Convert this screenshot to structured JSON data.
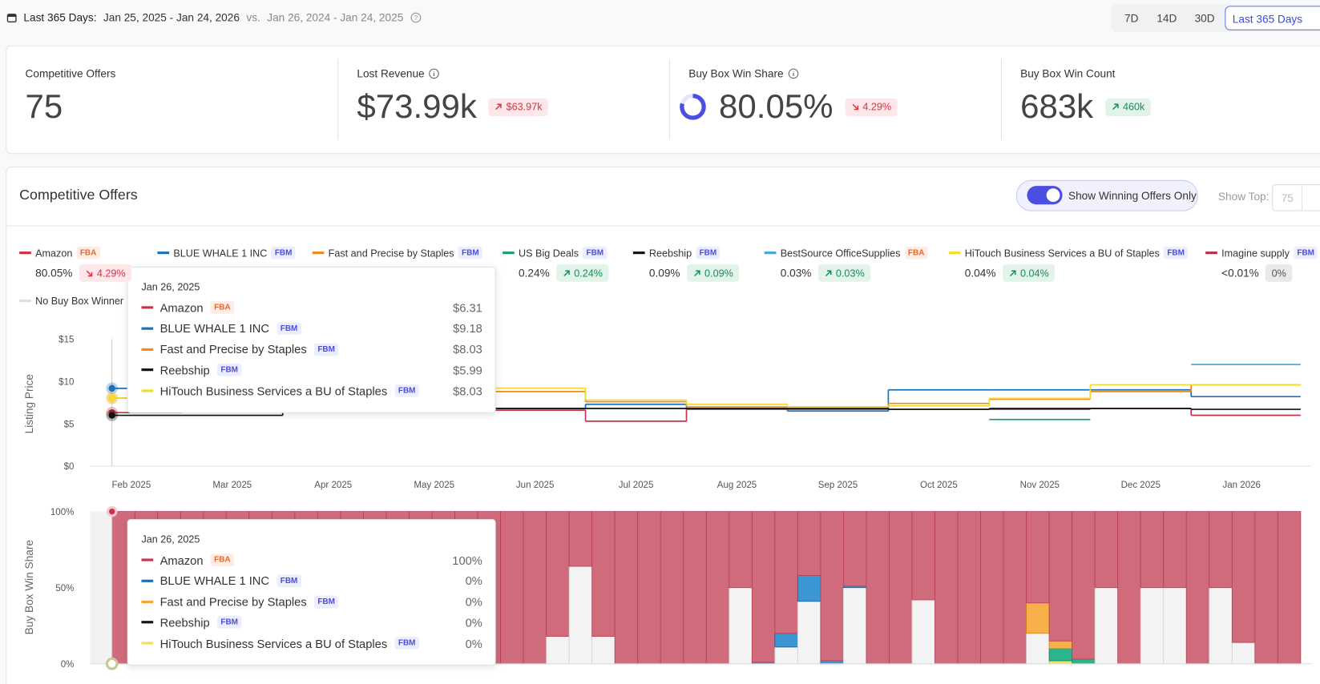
{
  "header": {
    "period_label": "Last 365 Days:",
    "range": "Jan 25, 2025 - Jan 24, 2026",
    "vs": "vs.",
    "compare_range": "Jan 26, 2024 - Jan 24, 2025"
  },
  "range_buttons": {
    "options": [
      "7D",
      "14D",
      "30D",
      "Last 365 Days"
    ],
    "selected": 3
  },
  "kpis": [
    {
      "title": "Competitive Offers",
      "value": 75
    },
    {
      "title": "Lost Revenue",
      "value": "$73.99k",
      "change": "$63.97k",
      "trend": "up",
      "tone": "bad",
      "info": true
    },
    {
      "title": "Buy Box Win Share",
      "value": "80.05%",
      "change": "4.29%",
      "trend": "down",
      "tone": "bad",
      "info": true,
      "ring": true
    },
    {
      "title": "Buy Box Win Count",
      "value": "683k",
      "change": "460k",
      "trend": "up",
      "tone": "good"
    }
  ],
  "panel": {
    "title": "Competitive Offers",
    "toggle_label": "Show Winning Offers Only",
    "toggle_on": true,
    "show_top_label": "Show Top:",
    "show_top_value": 75
  },
  "badge_styles": {
    "FBA": {
      "color": "#e4682f",
      "bg": "#fdede4"
    },
    "FBM": {
      "color": "#4a4ed8",
      "bg": "#eceefd"
    }
  },
  "legend": [
    {
      "name": "Amazon",
      "badge": "FBA",
      "color": "#c8334b",
      "share": "80.05%",
      "change": "4.29%",
      "trend": "down"
    },
    {
      "name": "BLUE WHALE 1 INC",
      "badge": "FBM",
      "color": "#1f6fb5"
    },
    {
      "name": "Fast and Precise by Staples",
      "badge": "FBM",
      "color": "#ef8a1f"
    },
    {
      "name": "US Big Deals",
      "badge": "FBM",
      "color": "#1a9e77",
      "share": "0.24%",
      "change": "0.24%",
      "trend": "up"
    },
    {
      "name": "Reebship",
      "badge": "FBM",
      "color": "#111111",
      "share": "0.09%",
      "change": "0.09%",
      "trend": "up"
    },
    {
      "name": "BestSource OfficeSupplies",
      "badge": "FBA",
      "color": "#42a5e0",
      "share": "0.03%",
      "change": "0.03%",
      "trend": "up"
    },
    {
      "name": "HiTouch Business Services a BU of Staples",
      "badge": "FBM",
      "color": "#f2db2e",
      "share": "0.04%",
      "change": "0.04%",
      "trend": "up"
    },
    {
      "name": "Imagine supply",
      "badge": "FBM",
      "color": "#b5304a",
      "share": "<0.01%",
      "change": "0%",
      "trend": "flat"
    },
    {
      "name": "No Buy Box Winner",
      "color": "#dddddd"
    }
  ],
  "chart_data": [
    {
      "type": "line",
      "y_label": "Listing Price",
      "categories": [
        "Feb 2025",
        "Mar 2025",
        "Apr 2025",
        "May 2025",
        "Jun 2025",
        "Jul 2025",
        "Aug 2025",
        "Sep 2025",
        "Oct 2025",
        "Nov 2025",
        "Dec 2025",
        "Jan 2026"
      ],
      "ylim": [
        0,
        15
      ],
      "yticks": [
        {
          "value": 0,
          "label": "$0"
        },
        {
          "value": 5,
          "label": "$5"
        },
        {
          "value": 10,
          "label": "$10"
        },
        {
          "value": 15,
          "label": "$15"
        }
      ],
      "series": [
        {
          "color": "#c8334b",
          "values": [
            6.31,
            6.7,
            6.7,
            6.7,
            6.6,
            5.3,
            6.7,
            6.7,
            6.7,
            6.7,
            6.8,
            6.0
          ]
        },
        {
          "color": "#1f6fb5",
          "values": [
            9.18,
            9.0,
            8.9,
            7.0,
            6.8,
            7.3,
            6.8,
            6.5,
            9.0,
            9.0,
            9.0,
            8.2
          ]
        },
        {
          "color": "#ef8a1f",
          "values": [
            8.03,
            8.0,
            8.3,
            8.7,
            8.8,
            7.6,
            7.0,
            7.0,
            7.4,
            7.9,
            8.8,
            9.6
          ]
        },
        {
          "color": "#1a9e77",
          "values": [
            null,
            null,
            null,
            null,
            null,
            null,
            null,
            null,
            null,
            5.5,
            null,
            null
          ]
        },
        {
          "color": "#111111",
          "values": [
            5.99,
            5.99,
            6.8,
            6.8,
            6.8,
            6.8,
            6.8,
            6.8,
            6.7,
            6.8,
            6.8,
            6.7
          ]
        },
        {
          "color": "#42a5e0",
          "values": [
            null,
            null,
            null,
            null,
            null,
            null,
            null,
            null,
            null,
            null,
            null,
            12.0
          ]
        },
        {
          "color": "#f2db2e",
          "values": [
            8.03,
            8.3,
            8.6,
            8.9,
            9.2,
            7.8,
            7.3,
            7.0,
            7.1,
            8.0,
            9.6,
            9.6
          ]
        }
      ]
    },
    {
      "type": "bar",
      "stacked": true,
      "y_label": "Buy Box Win Share",
      "categories": [
        null,
        null,
        null,
        null,
        null,
        null,
        null,
        null,
        null,
        null,
        null,
        null,
        null,
        null,
        null,
        null,
        null,
        null,
        null,
        null,
        null,
        null,
        null,
        null,
        null,
        null,
        null,
        null,
        null,
        null,
        null,
        null,
        null,
        null,
        null,
        null,
        null,
        null,
        null,
        null,
        null,
        null,
        null,
        null,
        null,
        null,
        null,
        null,
        null,
        null,
        null,
        null
      ],
      "ylim": [
        0,
        100
      ],
      "yticks": [
        {
          "value": 0,
          "label": "0%"
        },
        {
          "value": 50,
          "label": "50%"
        },
        {
          "value": 100,
          "label": "100%"
        }
      ],
      "series": [
        {
          "color": "#f3f3f3",
          "edge_color": "#d4d4d4",
          "values": [
            0,
            0,
            0,
            0,
            0,
            0,
            0,
            0,
            0,
            0,
            0,
            0,
            0,
            0,
            0,
            0,
            0,
            0,
            0,
            18,
            64,
            18,
            0,
            0,
            0,
            0,
            0,
            50,
            0,
            11,
            41,
            0,
            50,
            0,
            0,
            42,
            0,
            0,
            0,
            0,
            20,
            0,
            0,
            50,
            0,
            50,
            50,
            0,
            50,
            14,
            0,
            0
          ]
        },
        {
          "color": "#f0e35a",
          "edge_color": "#c9b82a",
          "values": [
            0,
            0,
            0,
            0,
            0,
            0,
            0,
            0,
            0,
            0,
            0,
            0,
            0,
            0,
            0,
            0,
            0,
            0,
            0,
            0,
            0,
            0,
            0,
            0,
            0,
            0,
            0,
            0,
            0,
            0,
            0,
            0,
            0,
            0,
            0,
            0,
            0,
            0,
            0,
            0,
            0,
            2,
            0,
            0,
            0,
            0,
            0,
            0,
            0,
            0,
            0,
            0
          ]
        },
        {
          "color": "#2bb58c",
          "edge_color": "#16845f",
          "values": [
            0,
            0,
            0,
            0,
            0,
            0,
            0,
            0,
            0,
            0,
            0,
            0,
            0,
            0,
            0,
            0,
            0,
            0,
            0,
            0,
            0,
            0,
            0,
            0,
            0,
            0,
            0,
            0,
            0,
            0,
            0,
            0,
            0,
            0,
            0,
            0,
            0,
            0,
            0,
            0,
            0,
            8,
            3,
            0,
            0,
            0,
            0,
            0,
            0,
            0,
            0,
            0
          ]
        },
        {
          "color": "#f7b04a",
          "edge_color": "#d88a1c",
          "values": [
            0,
            0,
            0,
            0,
            0,
            0,
            0,
            0,
            0,
            0,
            0,
            0,
            0,
            0,
            0,
            0,
            0,
            0,
            0,
            0,
            0,
            0,
            0,
            0,
            0,
            0,
            0,
            0,
            0,
            0,
            0,
            0,
            0,
            0,
            0,
            0,
            0,
            0,
            0,
            0,
            20,
            5,
            0,
            0,
            0,
            0,
            0,
            0,
            0,
            0,
            0,
            0
          ]
        },
        {
          "color": "#3d96d4",
          "edge_color": "#1f5f9a",
          "values": [
            0,
            0,
            0,
            0,
            0,
            0,
            0,
            0,
            0,
            0,
            0,
            0,
            0,
            0,
            0,
            0,
            0,
            0,
            0,
            0,
            0,
            0,
            0,
            0,
            0,
            0,
            0,
            0,
            1,
            9,
            17,
            2,
            1,
            0,
            0,
            0,
            0,
            0,
            0,
            0,
            0,
            0,
            0,
            0,
            0,
            0,
            0,
            0,
            0,
            0,
            0,
            0
          ]
        },
        {
          "color": "#d06b7c",
          "edge_color": "#b84058",
          "values": [
            100,
            100,
            100,
            100,
            100,
            100,
            100,
            100,
            100,
            100,
            100,
            100,
            100,
            100,
            100,
            100,
            100,
            100,
            100,
            82,
            36,
            82,
            100,
            100,
            100,
            100,
            100,
            50,
            99,
            80,
            42,
            98,
            49,
            100,
            100,
            58,
            100,
            100,
            100,
            100,
            60,
            85,
            97,
            50,
            100,
            50,
            50,
            100,
            50,
            86,
            100,
            100
          ]
        }
      ]
    }
  ],
  "tooltips": [
    {
      "date": "Jan 26, 2025",
      "rows": [
        {
          "name": "Amazon",
          "badge": "FBA",
          "color": "#c8334b",
          "value": "$6.31"
        },
        {
          "name": "BLUE WHALE 1 INC",
          "badge": "FBM",
          "color": "#1f6fb5",
          "value": "$9.18"
        },
        {
          "name": "Fast and Precise by Staples",
          "badge": "FBM",
          "color": "#ef8a1f",
          "value": "$8.03"
        },
        {
          "name": "Reebship",
          "badge": "FBM",
          "color": "#111111",
          "value": "$5.99"
        },
        {
          "name": "HiTouch Business Services a BU of Staples",
          "badge": "FBM",
          "color": "#f2db2e",
          "value": "$8.03"
        }
      ]
    },
    {
      "date": "Jan 26, 2025",
      "rows": [
        {
          "name": "Amazon",
          "badge": "FBA",
          "color": "#c8334b",
          "value": "100%"
        },
        {
          "name": "BLUE WHALE 1 INC",
          "badge": "FBM",
          "color": "#1f6fb5",
          "value": "0%"
        },
        {
          "name": "Fast and Precise by Staples",
          "badge": "FBM",
          "color": "#f7a43a",
          "value": "0%"
        },
        {
          "name": "Reebship",
          "badge": "FBM",
          "color": "#111111",
          "value": "0%"
        },
        {
          "name": "HiTouch Business Services a BU of Staples",
          "badge": "FBM",
          "color": "#f0e35a",
          "value": "0%"
        }
      ]
    }
  ]
}
